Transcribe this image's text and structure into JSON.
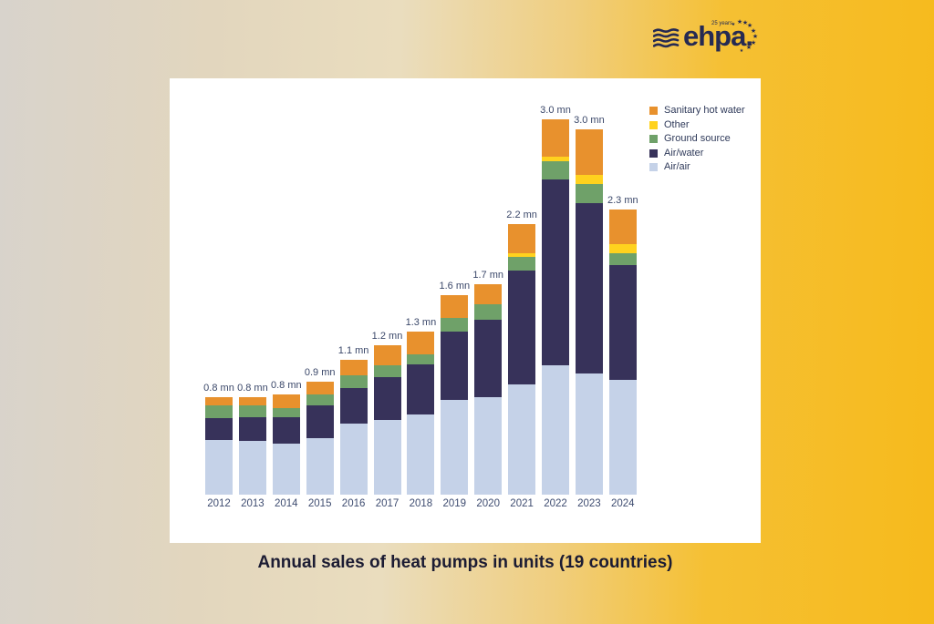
{
  "page": {
    "title": "Annual sales of heat pumps in units (19 countries)"
  },
  "logo": {
    "brand": "ehpa.",
    "tagline": "25 years",
    "color": "#262A52"
  },
  "legend": [
    {
      "key": "sanitary_hot_water",
      "label": "Sanitary hot water",
      "color": "#E8912D"
    },
    {
      "key": "other",
      "label": "Other",
      "color": "#FFD21E"
    },
    {
      "key": "ground_source",
      "label": "Ground source",
      "color": "#6FA169"
    },
    {
      "key": "air_water",
      "label": "Air/water",
      "color": "#37325A"
    },
    {
      "key": "air_air",
      "label": "Air/air",
      "color": "#C5D2E8"
    }
  ],
  "chart_data": {
    "type": "bar",
    "stacked": true,
    "unit": "mn units",
    "title": "Annual sales of heat pumps in units (19 countries)",
    "xlabel": "",
    "ylabel": "",
    "grid": false,
    "legend_position": "top-right",
    "stack_order_bottom_to_top": [
      "air_air",
      "air_water",
      "ground_source",
      "other",
      "sanitary_hot_water"
    ],
    "series_colors": {
      "air_air": "#C5D2E8",
      "air_water": "#37325A",
      "ground_source": "#6FA169",
      "other": "#FFD21E",
      "sanitary_hot_water": "#E8912D"
    },
    "categories": [
      "2012",
      "2013",
      "2014",
      "2015",
      "2016",
      "2017",
      "2018",
      "2019",
      "2020",
      "2021",
      "2022",
      "2023",
      "2024"
    ],
    "total_labels": [
      "0.8 mn",
      "0.8 mn",
      "0.8 mn",
      "0.9 mn",
      "1.1 mn",
      "1.2 mn",
      "1.3 mn",
      "1.6 mn",
      "1.7 mn",
      "2.2 mn",
      "3.0 mn",
      "3.0 mn",
      "2.3 mn"
    ],
    "bars": [
      {
        "year": "2012",
        "total_label": "0.8 mn",
        "values": {
          "air_air": 0.44,
          "air_water": 0.17,
          "ground_source": 0.1,
          "other": 0.0,
          "sanitary_hot_water": 0.07
        }
      },
      {
        "year": "2013",
        "total_label": "0.8 mn",
        "values": {
          "air_air": 0.43,
          "air_water": 0.19,
          "ground_source": 0.09,
          "other": 0.0,
          "sanitary_hot_water": 0.07
        }
      },
      {
        "year": "2014",
        "total_label": "0.8 mn",
        "values": {
          "air_air": 0.41,
          "air_water": 0.21,
          "ground_source": 0.07,
          "other": 0.0,
          "sanitary_hot_water": 0.11
        }
      },
      {
        "year": "2015",
        "total_label": "0.9 mn",
        "values": {
          "air_air": 0.45,
          "air_water": 0.26,
          "ground_source": 0.09,
          "other": 0.0,
          "sanitary_hot_water": 0.1
        }
      },
      {
        "year": "2016",
        "total_label": "1.1 mn",
        "values": {
          "air_air": 0.57,
          "air_water": 0.28,
          "ground_source": 0.1,
          "other": 0.0,
          "sanitary_hot_water": 0.13
        }
      },
      {
        "year": "2017",
        "total_label": "1.2 mn",
        "values": {
          "air_air": 0.6,
          "air_water": 0.34,
          "ground_source": 0.09,
          "other": 0.0,
          "sanitary_hot_water": 0.16
        }
      },
      {
        "year": "2018",
        "total_label": "1.3 mn",
        "values": {
          "air_air": 0.64,
          "air_water": 0.4,
          "ground_source": 0.08,
          "other": 0.0,
          "sanitary_hot_water": 0.18
        }
      },
      {
        "year": "2019",
        "total_label": "1.6 mn",
        "values": {
          "air_air": 0.76,
          "air_water": 0.54,
          "ground_source": 0.11,
          "other": 0.0,
          "sanitary_hot_water": 0.18
        }
      },
      {
        "year": "2020",
        "total_label": "1.7 mn",
        "values": {
          "air_air": 0.78,
          "air_water": 0.62,
          "ground_source": 0.12,
          "other": 0.0,
          "sanitary_hot_water": 0.16
        }
      },
      {
        "year": "2021",
        "total_label": "2.2 mn",
        "values": {
          "air_air": 0.88,
          "air_water": 0.91,
          "ground_source": 0.11,
          "other": 0.03,
          "sanitary_hot_water": 0.23
        }
      },
      {
        "year": "2022",
        "total_label": "3.0 mn",
        "values": {
          "air_air": 1.03,
          "air_water": 1.49,
          "ground_source": 0.14,
          "other": 0.04,
          "sanitary_hot_water": 0.3
        }
      },
      {
        "year": "2023",
        "total_label": "3.0 mn",
        "values": {
          "air_air": 0.97,
          "air_water": 1.36,
          "ground_source": 0.15,
          "other": 0.07,
          "sanitary_hot_water": 0.37
        }
      },
      {
        "year": "2024",
        "total_label": "2.3 mn",
        "values": {
          "air_air": 0.92,
          "air_water": 0.91,
          "ground_source": 0.1,
          "other": 0.07,
          "sanitary_hot_water": 0.28
        }
      }
    ]
  }
}
